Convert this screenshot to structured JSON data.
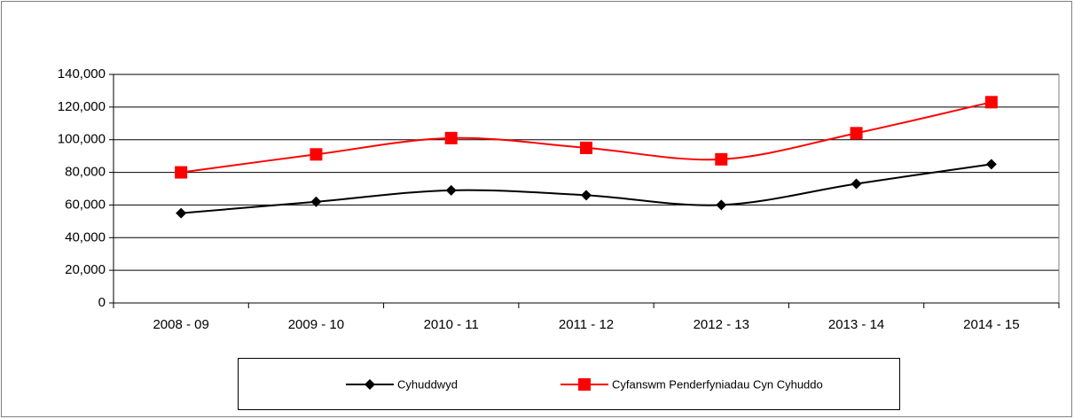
{
  "chart_data": {
    "type": "line",
    "categories": [
      "2008 - 09",
      "2009 - 10",
      "2010 - 11",
      "2011 - 12",
      "2012 - 13",
      "2013 - 14",
      "2014 - 15"
    ],
    "series": [
      {
        "name": "Cyhuddwyd",
        "color": "#000000",
        "marker": "diamond",
        "values": [
          55000,
          62000,
          69000,
          66000,
          60000,
          73000,
          85000
        ]
      },
      {
        "name": "Cyfanswm Penderfyniadau Cyn Cyhuddo",
        "color": "#ff0000",
        "marker": "square",
        "values": [
          80000,
          91000,
          101000,
          95000,
          88000,
          104000,
          123000
        ]
      }
    ],
    "ylim": [
      0,
      140000
    ],
    "yticks": [
      0,
      {
        "value": 20000,
        "label": "20,000"
      },
      {
        "value": 40000,
        "label": "40,000"
      },
      {
        "value": 60000,
        "label": "60,000"
      },
      {
        "value": 80000,
        "label": "80,000"
      },
      {
        "value": 100000,
        "label": "100,000"
      },
      {
        "value": 120000,
        "label": "120,000"
      },
      {
        "value": 140000,
        "label": "140,000"
      }
    ],
    "grid": true,
    "smooth": true,
    "legend": "bottom"
  }
}
